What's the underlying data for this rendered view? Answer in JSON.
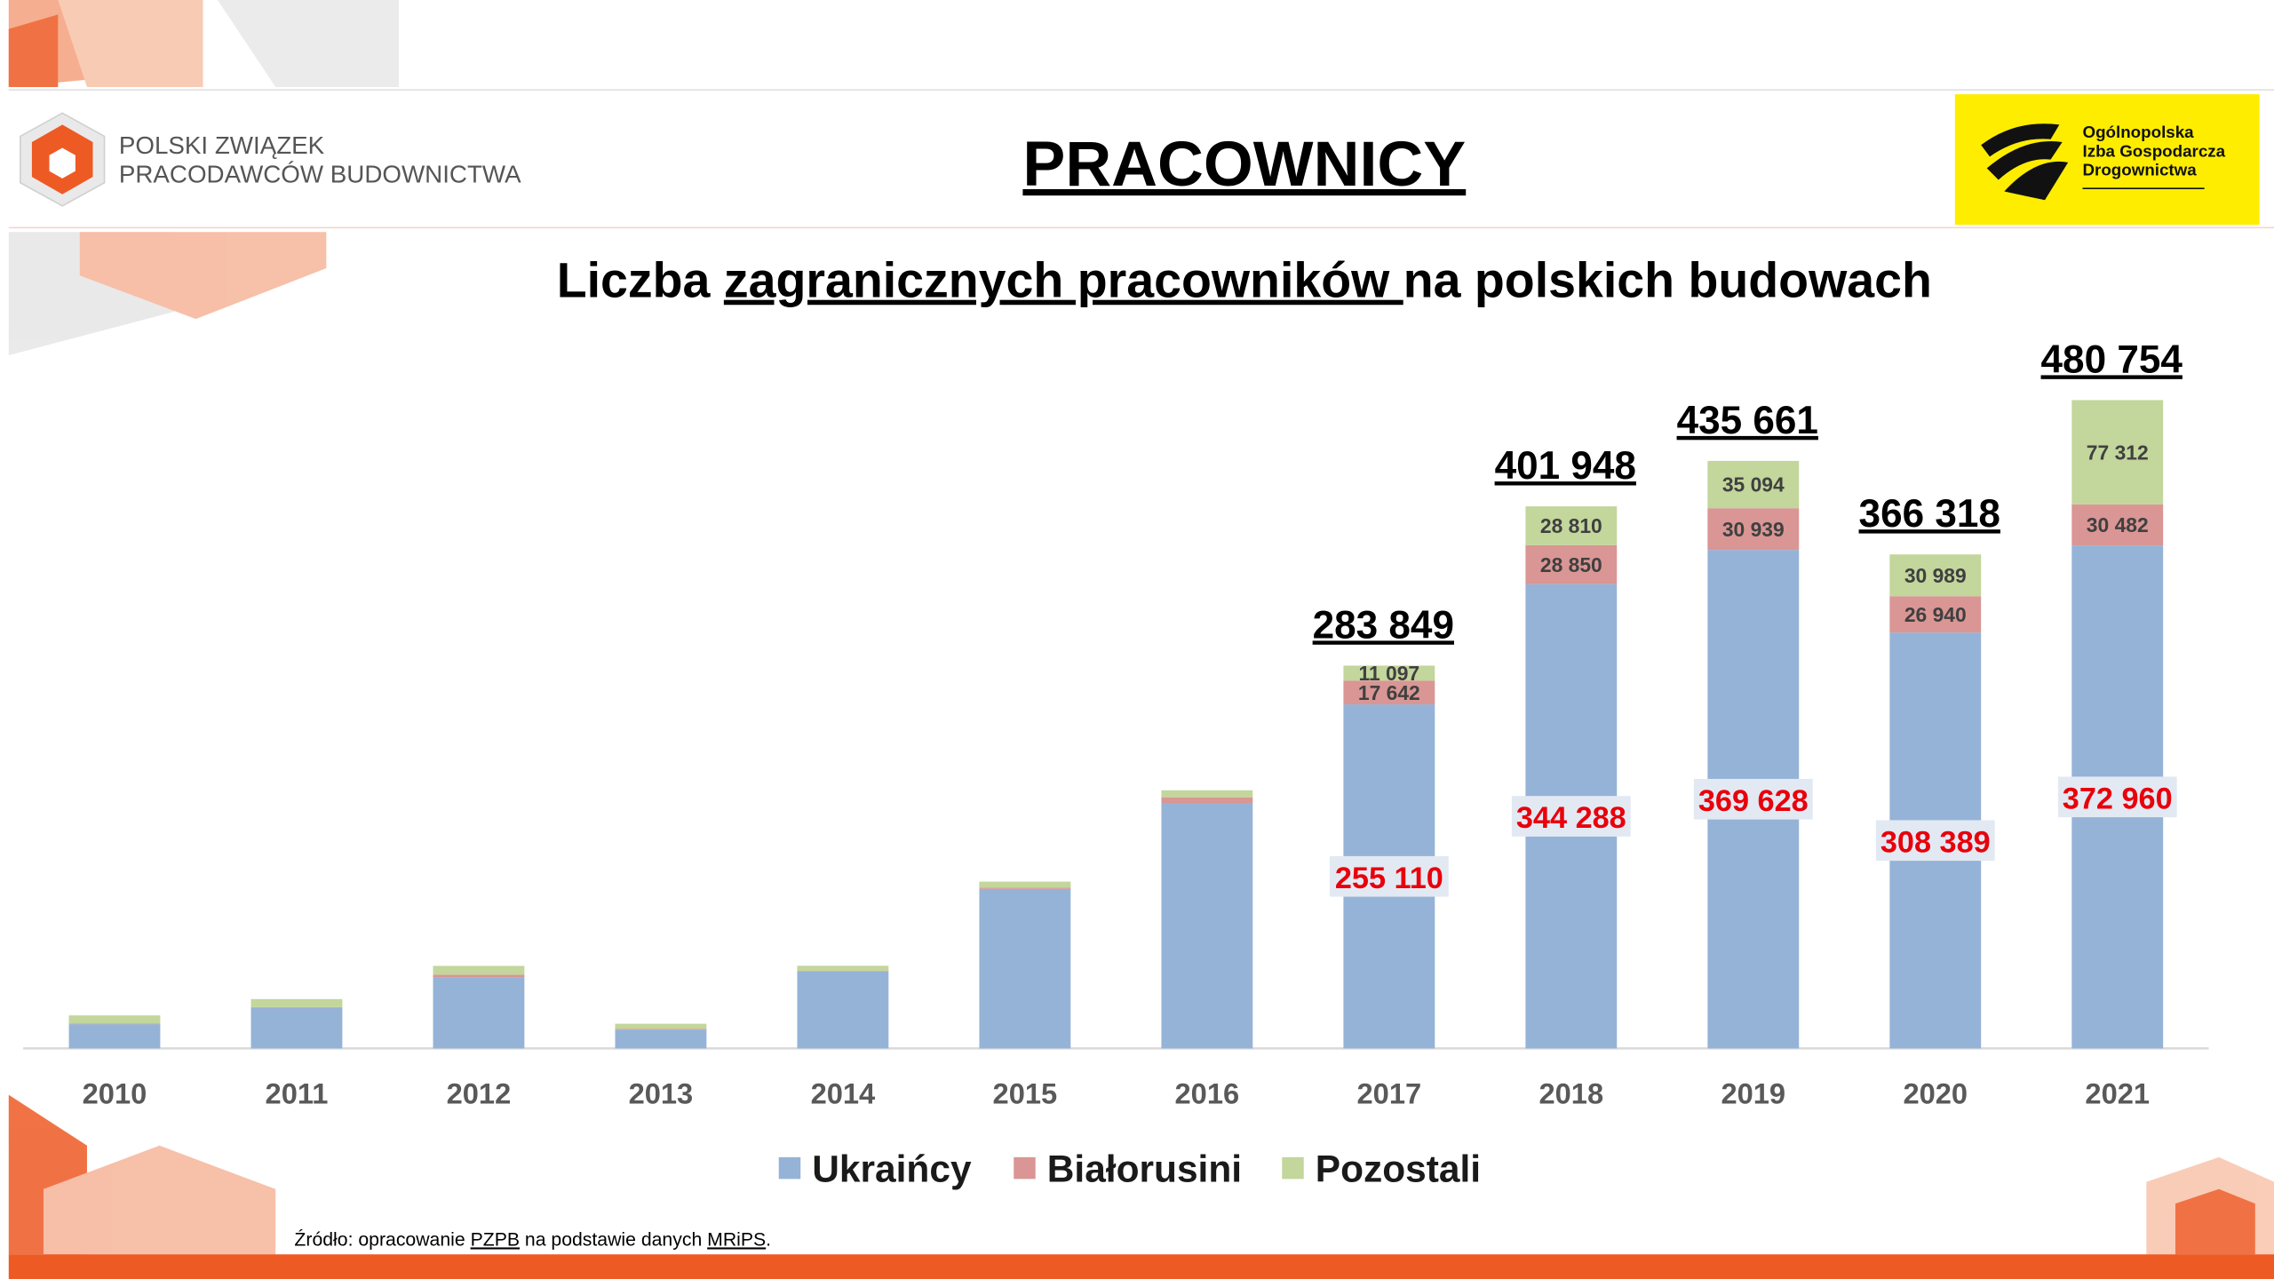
{
  "header": {
    "left_logo": [
      "POLSKI ZWIĄZEK",
      "PRACODAWCÓW BUDOWNICTWA"
    ],
    "right_logo": [
      "Ogólnopolska",
      "Izba Gospodarcza",
      "Drogownictwa"
    ],
    "title": "PRACOWNICY"
  },
  "chart_data": {
    "type": "stacked_bar",
    "title_parts": [
      "Liczba ",
      "zagranicznych pracowników ",
      "na polskich budowach"
    ],
    "categories": [
      "2010",
      "2011",
      "2012",
      "2013",
      "2014",
      "2015",
      "2016",
      "2017",
      "2018",
      "2019",
      "2020",
      "2021"
    ],
    "series": [
      {
        "name": "Ukraińcy",
        "color": "#95b3d7",
        "values": [
          18000,
          30100,
          52700,
          14000,
          57000,
          118300,
          181700,
          255110,
          344288,
          369628,
          308389,
          372960
        ],
        "value_labels": [
          null,
          null,
          null,
          null,
          null,
          null,
          null,
          "255 110",
          "344 288",
          "369 628",
          "308 389",
          "372 960"
        ]
      },
      {
        "name": "Białorusini",
        "color": "#d99694",
        "values": [
          500,
          500,
          2000,
          500,
          500,
          1000,
          4500,
          17642,
          28850,
          30939,
          26940,
          30482
        ],
        "value_labels": [
          null,
          null,
          null,
          null,
          null,
          null,
          null,
          "17 642",
          "28 850",
          "30 939",
          "26 940",
          "30 482"
        ]
      },
      {
        "name": "Pozostali",
        "color": "#c3d69b",
        "values": [
          6000,
          6000,
          6500,
          3800,
          3800,
          4400,
          5200,
          11097,
          28810,
          35094,
          30989,
          77312
        ],
        "value_labels": [
          null,
          null,
          null,
          null,
          null,
          null,
          null,
          "11 097",
          "28 810",
          "35 094",
          "30 989",
          "77 312"
        ]
      }
    ],
    "totals": [
      null,
      null,
      null,
      null,
      null,
      null,
      null,
      283849,
      401948,
      435661,
      366318,
      480754
    ],
    "total_labels": [
      null,
      null,
      null,
      null,
      null,
      null,
      null,
      "283 849",
      "401 948",
      "435 661",
      "366 318",
      "480 754"
    ],
    "ylim": [
      0,
      500000
    ],
    "legend": "bottom"
  },
  "source": [
    "Źródło: opracowanie ",
    "PZPB",
    " na podstawie danych ",
    "MRiPS",
    "."
  ]
}
